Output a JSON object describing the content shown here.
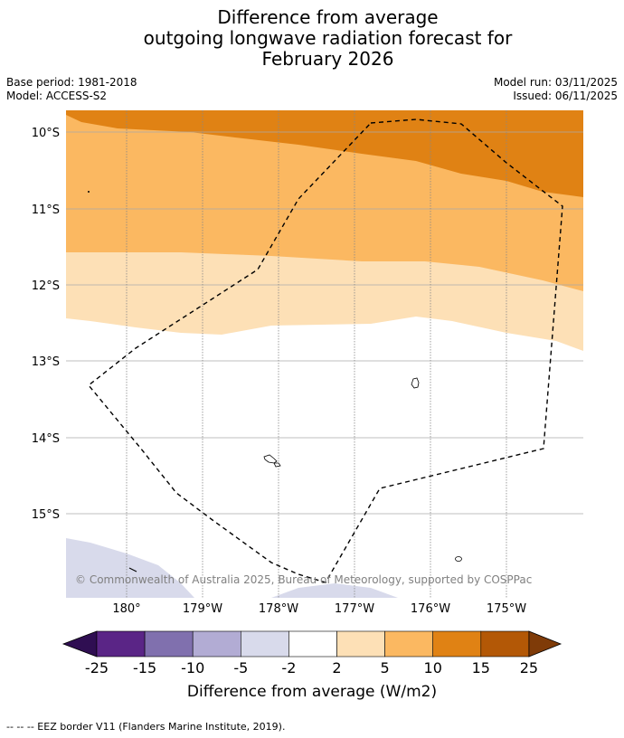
{
  "title": {
    "line1": "Difference from average",
    "line2": "outgoing longwave radiation forecast for",
    "line3": "February 2026"
  },
  "meta": {
    "base_period": "Base period: 1981-2018",
    "model": "Model: ACCESS-S2",
    "model_run": "Model run: 03/11/2025",
    "issued": "Issued: 06/11/2025"
  },
  "map": {
    "lat_labels": [
      "10°S",
      "11°S",
      "12°S",
      "13°S",
      "14°S",
      "15°S"
    ],
    "lon_labels": [
      "180°",
      "179°W",
      "178°W",
      "177°W",
      "176°W",
      "175°W"
    ],
    "copyright": "© Commonwealth of Australia 2025, Bureau of Meteorology, supported by COSPPac"
  },
  "colorbar": {
    "tick_labels": [
      "-25",
      "-15",
      "-10",
      "-5",
      "-2",
      "2",
      "5",
      "10",
      "15",
      "25"
    ],
    "colors": [
      "#2f0e52",
      "#5a2586",
      "#8070ae",
      "#b2acd4",
      "#d8daeb",
      "#ffffff",
      "#fde0b6",
      "#fbb861",
      "#e08214",
      "#b35806",
      "#7f3b08"
    ],
    "axis_title": "Difference from average (W/m2)"
  },
  "legend": {
    "eez": "--  --  -- EEZ border V11 (Flanders Marine Institute, 2019)."
  }
}
